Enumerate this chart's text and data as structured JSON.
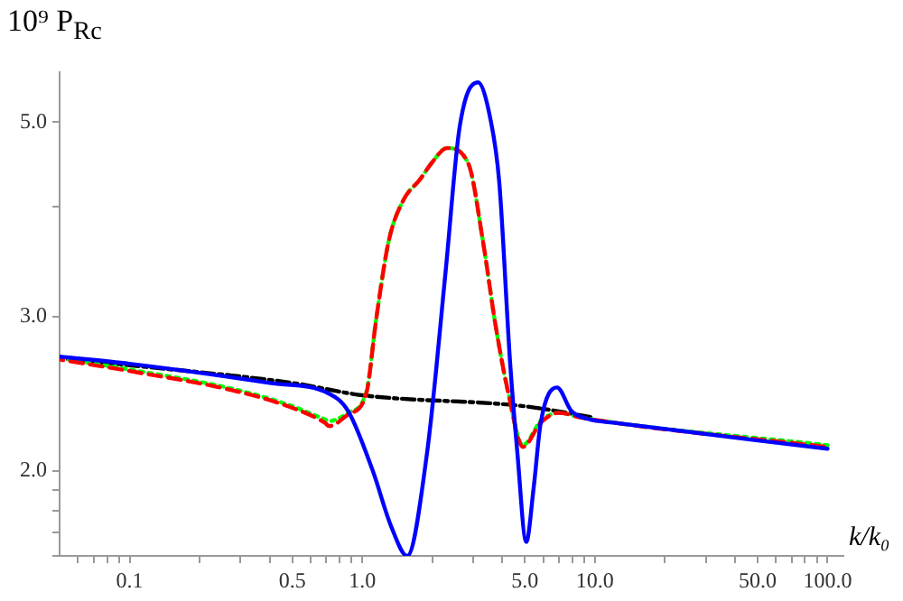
{
  "chart_data": {
    "type": "line",
    "ylabel": "10⁹ P$_{Rc}$",
    "xlabel": "k/k₀",
    "log": "xy",
    "grid": false,
    "legend": false,
    "marker": "none",
    "xlim": [
      0.05,
      117
    ],
    "ylim": [
      1.6,
      5.7
    ],
    "xticks": [
      {
        "value": 0.06,
        "label": null
      },
      {
        "value": 0.07,
        "label": null
      },
      {
        "value": 0.08,
        "label": null
      },
      {
        "value": 0.09,
        "label": null
      },
      0.1,
      {
        "value": 0.2,
        "label": null
      },
      {
        "value": 0.3,
        "label": null
      },
      {
        "value": 0.4,
        "label": null
      },
      0.5,
      {
        "value": 0.6,
        "label": null
      },
      {
        "value": 0.7,
        "label": null
      },
      {
        "value": 0.8,
        "label": null
      },
      {
        "value": 0.9,
        "label": null
      },
      {
        "value": 1,
        "label": "1.0"
      },
      {
        "value": 2,
        "label": null
      },
      {
        "value": 3,
        "label": null
      },
      {
        "value": 4,
        "label": null
      },
      {
        "value": 5,
        "label": "5.0"
      },
      {
        "value": 6,
        "label": null
      },
      {
        "value": 7,
        "label": null
      },
      {
        "value": 8,
        "label": null
      },
      {
        "value": 9,
        "label": null
      },
      {
        "value": 10,
        "label": "10.0"
      },
      {
        "value": 20,
        "label": null
      },
      {
        "value": 30,
        "label": null
      },
      {
        "value": 40,
        "label": null
      },
      {
        "value": 50,
        "label": "50.0"
      },
      {
        "value": 60,
        "label": null
      },
      {
        "value": 70,
        "label": null
      },
      {
        "value": 80,
        "label": null
      },
      {
        "value": 90,
        "label": null
      },
      {
        "value": 100,
        "label": "100.0"
      }
    ],
    "yticks": [
      {
        "value": 1.6,
        "label": null
      },
      {
        "value": 1.7,
        "label": null
      },
      {
        "value": 1.8,
        "label": null
      },
      {
        "value": 1.9,
        "label": null
      },
      {
        "value": 2,
        "label": "2.0"
      },
      {
        "value": 3,
        "label": "3.0"
      },
      {
        "value": 4,
        "label": null
      },
      {
        "value": 5,
        "label": "5.0"
      }
    ],
    "series": [
      {
        "color": "#0000ff",
        "line_style": "solid",
        "x": [
          0.05,
          0.1,
          0.4,
          0.72,
          0.87,
          1.11,
          1.33,
          1.56,
          1.9,
          2.28,
          2.62,
          3.14,
          3.55,
          3.88,
          4.32,
          4.64,
          5.07,
          5.45,
          5.85,
          6.87,
          7.93,
          9.48,
          12,
          100
        ],
        "values": [
          2.7,
          2.65,
          2.52,
          2.45,
          2.34,
          2.0,
          1.73,
          1.6,
          2.1,
          3.37,
          4.93,
          5.55,
          5.05,
          4.27,
          2.66,
          2.1,
          1.66,
          1.91,
          2.27,
          2.49,
          2.34,
          2.29,
          2.27,
          2.12
        ]
      },
      {
        "color": "#ff0000",
        "line_style": "dashed",
        "x": [
          0.05,
          0.1,
          0.28,
          0.48,
          0.69,
          0.72,
          0.87,
          1.04,
          1.15,
          1.3,
          1.5,
          1.77,
          2.0,
          2.31,
          2.86,
          3.3,
          3.75,
          4.25,
          4.9,
          5.85,
          7.0,
          8.8,
          100
        ],
        "values": [
          2.68,
          2.6,
          2.47,
          2.37,
          2.27,
          2.25,
          2.32,
          2.45,
          2.99,
          3.66,
          4.07,
          4.3,
          4.5,
          4.67,
          4.48,
          3.66,
          2.92,
          2.45,
          2.13,
          2.27,
          2.33,
          2.3,
          2.13
        ]
      },
      {
        "color": "#00ff00",
        "line_style": "dotted",
        "x": [
          0.05,
          0.1,
          0.28,
          0.48,
          0.69,
          0.72,
          0.87,
          1.04,
          1.15,
          1.3,
          1.5,
          1.77,
          2.0,
          2.31,
          2.86,
          3.3,
          3.75,
          4.25,
          4.9,
          5.85,
          7.0,
          8.8,
          100
        ],
        "values": [
          2.69,
          2.61,
          2.48,
          2.38,
          2.29,
          2.28,
          2.33,
          2.46,
          2.99,
          3.66,
          4.07,
          4.3,
          4.5,
          4.67,
          4.48,
          3.66,
          2.92,
          2.45,
          2.14,
          2.28,
          2.33,
          2.3,
          2.14
        ]
      },
      {
        "color": "#000000",
        "line_style": "dashdot",
        "x": [
          0.05,
          0.1,
          0.5,
          1,
          5,
          10
        ],
        "values": [
          2.69,
          2.64,
          2.52,
          2.44,
          2.37,
          2.3
        ]
      }
    ]
  }
}
